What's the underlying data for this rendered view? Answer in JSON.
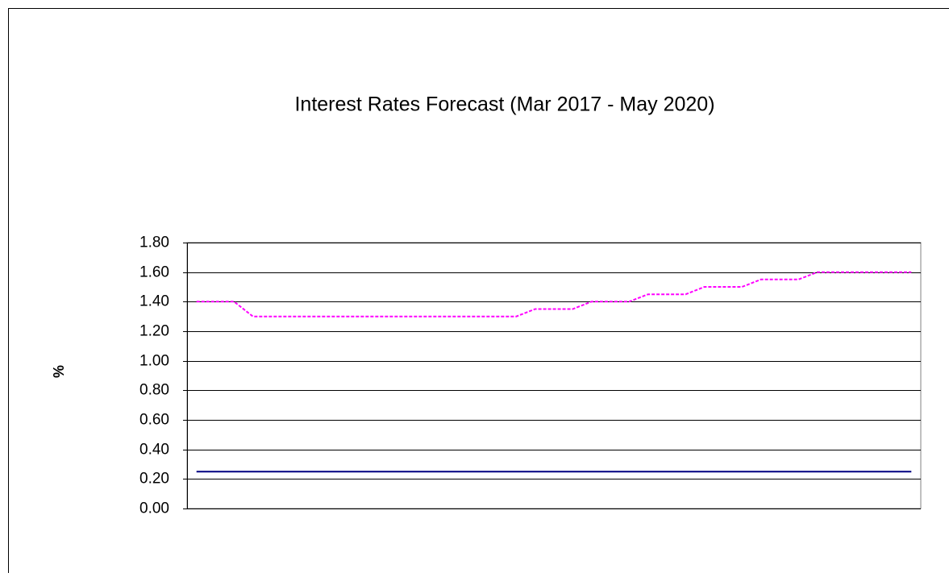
{
  "chart_data": {
    "type": "line",
    "title": "Interest Rates Forecast (Mar 2017 - May 2020)",
    "y_label": "%",
    "categories": [
      null,
      null,
      null,
      null,
      null,
      null,
      null,
      null,
      null,
      null,
      null,
      null,
      null,
      null,
      null,
      null,
      null,
      null,
      null,
      null,
      null,
      null,
      null,
      null,
      null,
      null,
      null,
      null,
      null,
      null,
      null,
      null,
      null,
      null,
      null,
      null,
      null,
      null,
      null
    ],
    "series": [
      {
        "color": "#ff00ff",
        "line_style": "dashed",
        "values": [
          1.4,
          1.4,
          1.4,
          1.3,
          1.3,
          1.3,
          1.3,
          1.3,
          1.3,
          1.3,
          1.3,
          1.3,
          1.3,
          1.3,
          1.3,
          1.3,
          1.3,
          1.3,
          1.35,
          1.35,
          1.35,
          1.4,
          1.4,
          1.4,
          1.45,
          1.45,
          1.45,
          1.5,
          1.5,
          1.5,
          1.55,
          1.55,
          1.55,
          1.6,
          1.6,
          1.6,
          1.6,
          1.6,
          1.6
        ]
      },
      {
        "color": "#000080",
        "line_style": "solid",
        "values": [
          0.25,
          0.25,
          0.25,
          0.25,
          0.25,
          0.25,
          0.25,
          0.25,
          0.25,
          0.25,
          0.25,
          0.25,
          0.25,
          0.25,
          0.25,
          0.25,
          0.25,
          0.25,
          0.25,
          0.25,
          0.25,
          0.25,
          0.25,
          0.25,
          0.25,
          0.25,
          0.25,
          0.25,
          0.25,
          0.25,
          0.25,
          0.25,
          0.25,
          0.25,
          0.25,
          0.25,
          0.25,
          0.25,
          0.25
        ]
      }
    ],
    "ylim": [
      0,
      1.8
    ],
    "yticks": [
      {
        "value": 0,
        "label": "0.00"
      },
      {
        "value": 0.2,
        "label": "0.20"
      },
      {
        "value": 0.4,
        "label": "0.40"
      },
      {
        "value": 0.6,
        "label": "0.60"
      },
      {
        "value": 0.8,
        "label": "0.80"
      },
      {
        "value": 1.0,
        "label": "1.00"
      },
      {
        "value": 1.2,
        "label": "1.20"
      },
      {
        "value": 1.4,
        "label": "1.40"
      },
      {
        "value": 1.6,
        "label": "1.60"
      },
      {
        "value": 1.8,
        "label": "1.80"
      }
    ],
    "grid": true
  }
}
